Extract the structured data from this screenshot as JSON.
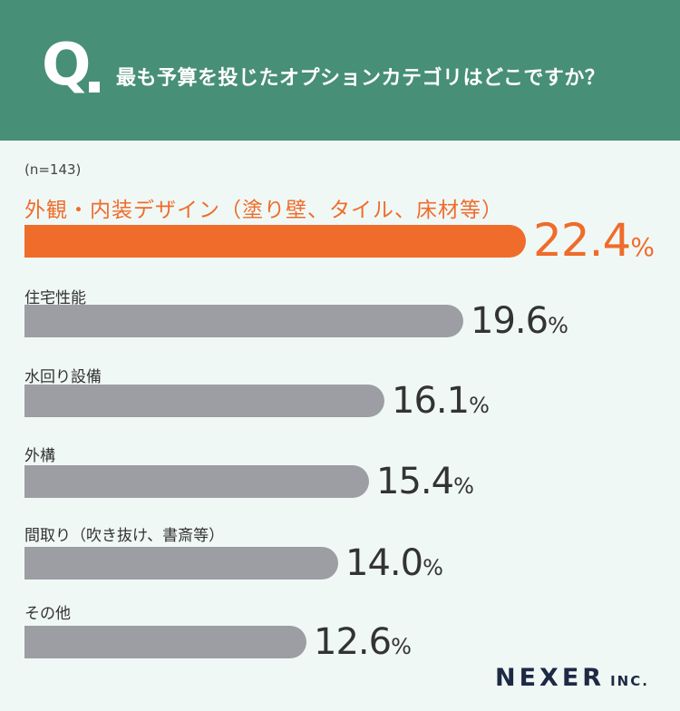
{
  "header": {
    "q_mark": "Q",
    "question": "最も予算を投じたオプションカテゴリはどこですか？"
  },
  "sample_size": "(n=143)",
  "colors": {
    "highlight": "#ef6c2a",
    "bar": "#9d9ea3",
    "header": "#478f76"
  },
  "chart_data": {
    "type": "bar",
    "orientation": "horizontal",
    "unit": "%",
    "categories": [
      "外観・内装デザイン（塗り壁、タイル、床材等）",
      "住宅性能",
      "水回り設備",
      "外構",
      "間取り（吹き抜け、書斎等）",
      "その他"
    ],
    "values": [
      22.4,
      19.6,
      16.1,
      15.4,
      14.0,
      12.6
    ],
    "value_labels": [
      "22.4",
      "19.6",
      "16.1",
      "15.4",
      "14.0",
      "12.6"
    ],
    "highlight_index": 0
  },
  "logo": {
    "main": "NEXER",
    "suffix": "INC."
  }
}
